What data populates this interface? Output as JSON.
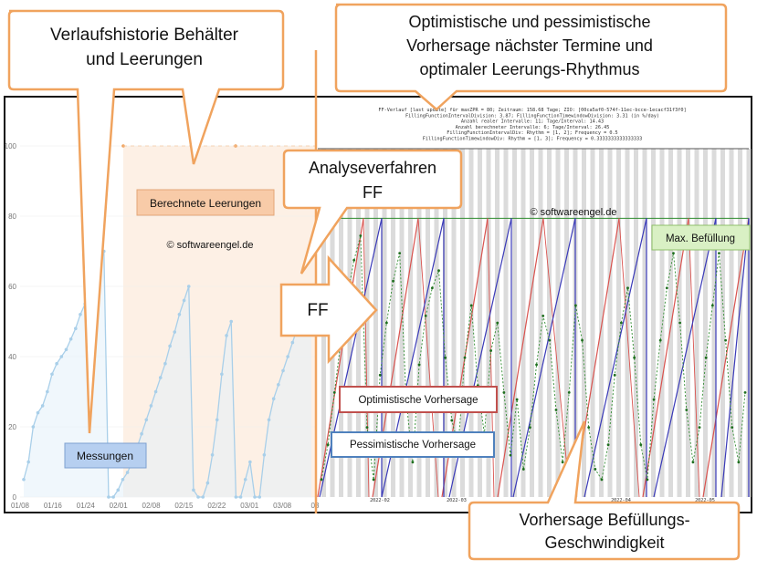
{
  "callouts": {
    "history": "Verlaufshistorie Behälter\nund Leerungen",
    "forecast": "Optimistische und pessimistische\nVorhersage nächster Termine und\noptimaler Leerungs-Rhythmus",
    "analysis": "Analyseverfahren\nFF",
    "arrow_label": "FF",
    "fill_speed": "Vorhersage Befüllungs-\nGeschwindigkeit"
  },
  "labels": {
    "measurements": "Messungen",
    "calculated_emptyings": "Berechnete Leerungen",
    "max_fill": "Max. Befüllung",
    "optimistic": "Optimistische  Vorhersage",
    "pessimistic": "Pessimistische  Vorhersage",
    "watermark": "© softwareengel.de"
  },
  "colors": {
    "callout_border": "#f0a35e",
    "measurements_line": "#a9cfe9",
    "calculated_fill": "#fbe6d4",
    "optimistic_line": "#d9534f",
    "pessimistic_line": "#3a3ab8",
    "fill_speed_line": "#2e8b2e",
    "max_line": "#2e8b2e"
  },
  "chart_data": [
    {
      "type": "line",
      "title": "",
      "xlabel": "",
      "ylabel": "",
      "x_ticks": [
        "01/08",
        "01/16",
        "01/24",
        "02/01",
        "02/08",
        "02/15",
        "02/22",
        "03/01",
        "03/08",
        "03"
      ],
      "y_ticks": [
        "0",
        "20",
        "40",
        "60",
        "80",
        "100"
      ],
      "ylim": [
        0,
        100
      ],
      "series": [
        {
          "name": "Messungen",
          "x": [
            0,
            1,
            2,
            3,
            4,
            5,
            6,
            7,
            8,
            9,
            10,
            11,
            12,
            13,
            14,
            15,
            16,
            17,
            18,
            19,
            20,
            21,
            22,
            23,
            24,
            25,
            26,
            27,
            28,
            29,
            30,
            31,
            32,
            33,
            34,
            35,
            36,
            37,
            38,
            39,
            40,
            41,
            42,
            43,
            44,
            45,
            46,
            47,
            48,
            49,
            50,
            51,
            52,
            53,
            54,
            55,
            56,
            57,
            58,
            59,
            60,
            61
          ],
          "values": [
            5,
            10,
            20,
            24,
            26,
            30,
            35,
            38,
            40,
            42,
            45,
            48,
            52,
            55,
            58,
            62,
            65,
            70,
            0,
            0,
            2,
            5,
            7,
            10,
            14,
            18,
            22,
            26,
            30,
            34,
            38,
            43,
            47,
            52,
            56,
            60,
            2,
            0,
            0,
            4,
            12,
            22,
            35,
            46,
            50,
            0,
            0,
            5,
            10,
            0,
            0,
            12,
            22,
            28,
            32,
            36,
            40,
            44,
            48,
            52,
            55,
            58
          ]
        },
        {
          "name": "Berechnete Leerungen",
          "values": [
            100,
            100,
            100
          ]
        }
      ]
    },
    {
      "type": "line",
      "title": "FF-Verlauf [last update] für maxZPR = 80; Zeitraum: 158.68 Tage; ZIO: [00ca5af0-574f-11ec-bcce-1ecacf31f3f0]",
      "subtitle_lines": [
        "FillingFunctionIntervalDivision: 3.87; FillingFunctionTimewindowDivision: 3.31 (in %/day)",
        "Anzahl realer Intervalle: 11; Tage/Interval: 14.43",
        "Anzahl berechneter Intervalle: 6; Tage/Interval: 26.45",
        "FillingFunctionIntervalDiv: Rhythm = [1, 2]; Frequency = 0.5",
        "FillingFunctionTimewindowDiv: Rhythm = [1, 3]; Frequency = 0.3333333333333333"
      ],
      "x_ticks": [
        "2022-02",
        "2022-03",
        "2022-04",
        "2022-05"
      ],
      "max_fill": 80,
      "series": [
        {
          "name": "Optimistische Vorhersage",
          "cycle_days": 14,
          "values": [
            0,
            80
          ]
        },
        {
          "name": "Pessimistische Vorhersage",
          "cycle_days": 18,
          "values": [
            0,
            80
          ]
        },
        {
          "name": "Vorhersage Befüllungs-Geschwindigkeit",
          "values": [
            5,
            15,
            30,
            45,
            58,
            68,
            75,
            20,
            5,
            35,
            50,
            62,
            70,
            28,
            10,
            38,
            52,
            60,
            65,
            40,
            22,
            15,
            40,
            55,
            32,
            18,
            42,
            50,
            30,
            12,
            28,
            8,
            20,
            38,
            52,
            45,
            25,
            10,
            30,
            55,
            45,
            20,
            8,
            5,
            15,
            35,
            50,
            60,
            40,
            15,
            5,
            28,
            45,
            60,
            70,
            50,
            25,
            10,
            20,
            40,
            55,
            70,
            45,
            20,
            10,
            30
          ]
        }
      ]
    }
  ]
}
